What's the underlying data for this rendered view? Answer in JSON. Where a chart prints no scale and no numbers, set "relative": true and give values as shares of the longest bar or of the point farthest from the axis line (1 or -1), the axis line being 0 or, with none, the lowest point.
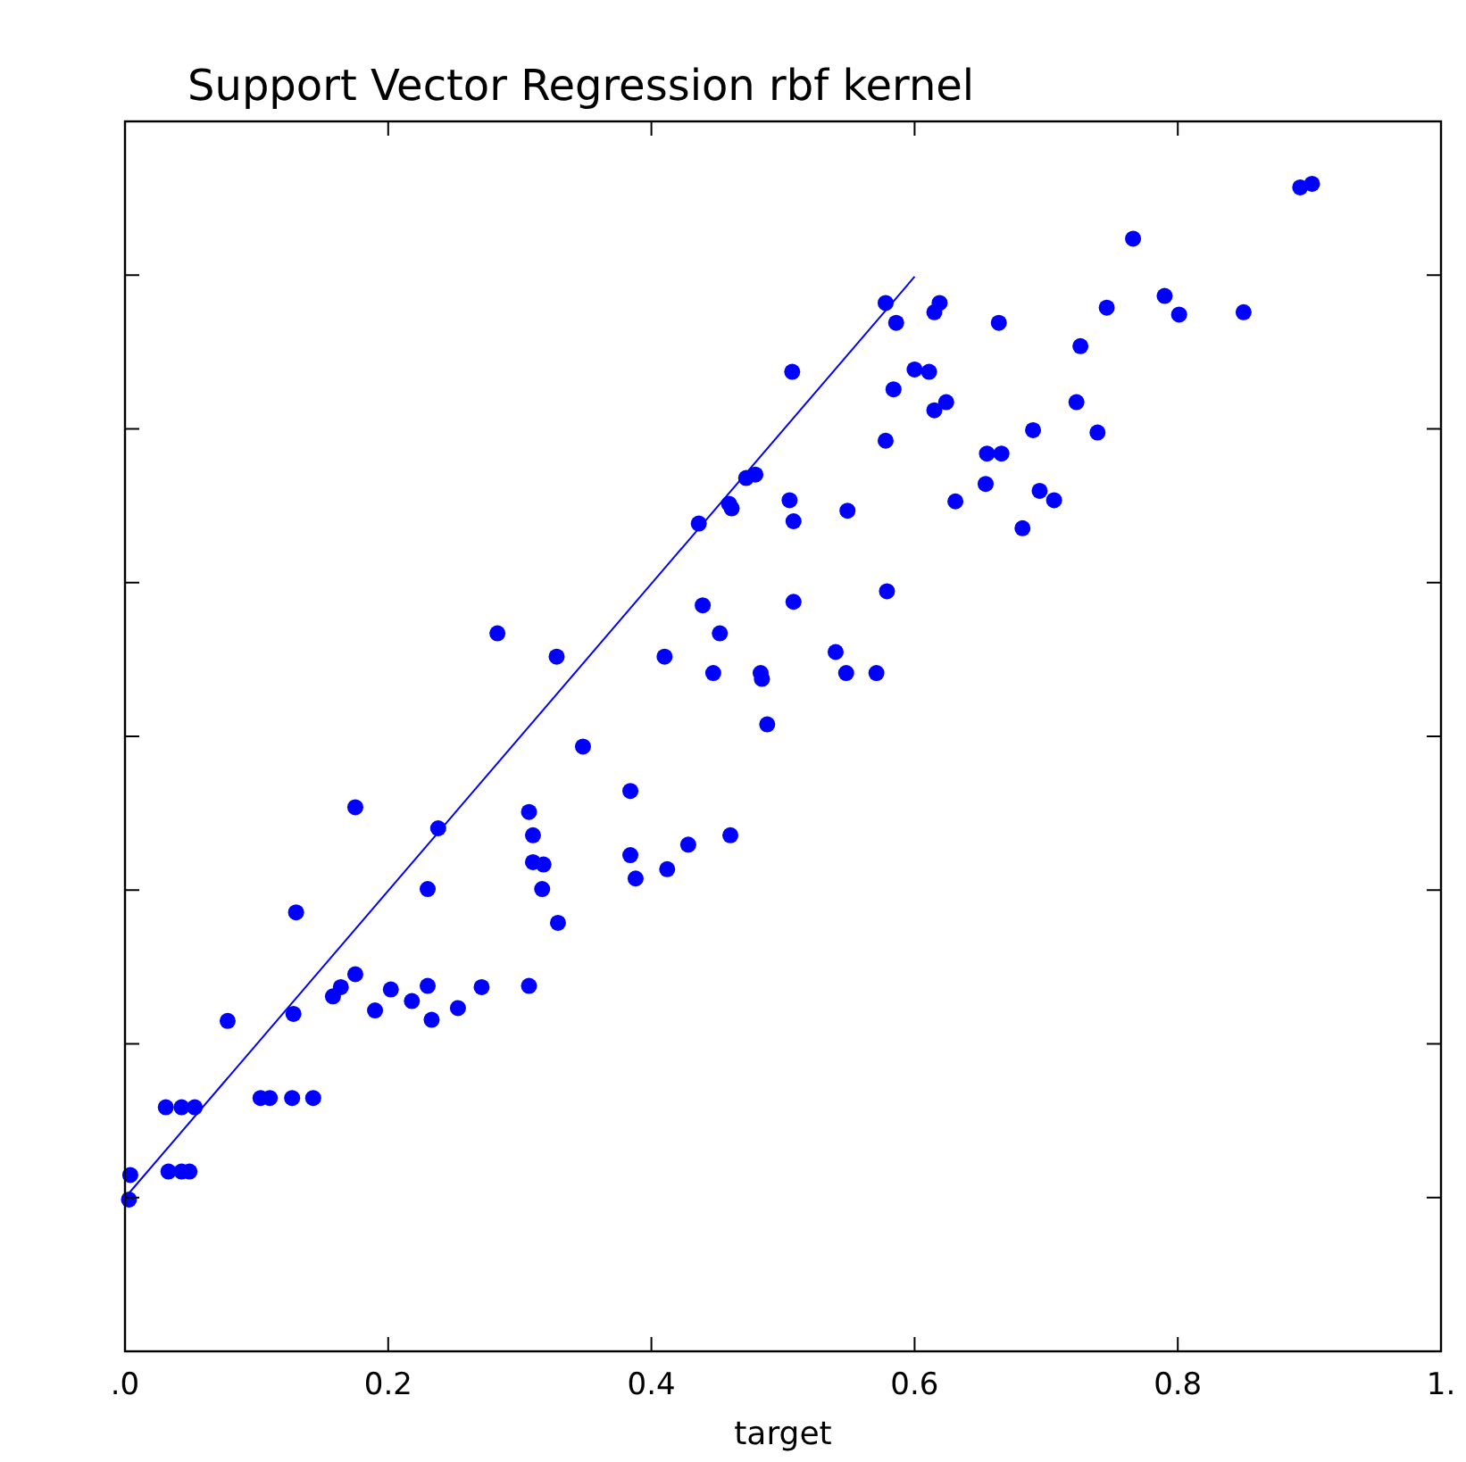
{
  "chart_data": {
    "type": "scatter",
    "title": "Support Vector Regression rbf kernel",
    "xlabel": "target",
    "relative": true,
    "xlim": [
      0,
      1
    ],
    "xticks": [
      {
        "value": 0,
        "label": ".0"
      },
      0.2,
      0.4,
      0.6,
      0.8,
      {
        "value": 1,
        "label": "1."
      }
    ],
    "grid": false,
    "series": [
      {
        "marker": "circle",
        "color": "#0000ff",
        "x": [
          0.003,
          0.004,
          0.033,
          0.043,
          0.049,
          0.031,
          0.043,
          0.053,
          0.103,
          0.11,
          0.127,
          0.143,
          0.078,
          0.128,
          0.13,
          0.158,
          0.164,
          0.175,
          0.19,
          0.202,
          0.218,
          0.23,
          0.233,
          0.253,
          0.271,
          0.307,
          0.175,
          0.23,
          0.238,
          0.283,
          0.307,
          0.31,
          0.31,
          0.318,
          0.317,
          0.329,
          0.328,
          0.348,
          0.384,
          0.384,
          0.388,
          0.412,
          0.428,
          0.46,
          0.41,
          0.447,
          0.452,
          0.439,
          0.483,
          0.484,
          0.488,
          0.508,
          0.54,
          0.548,
          0.571,
          0.579,
          0.436,
          0.459,
          0.461,
          0.472,
          0.479,
          0.505,
          0.508,
          0.549,
          0.507,
          0.578,
          0.586,
          0.615,
          0.619,
          0.6,
          0.611,
          0.584,
          0.615,
          0.624,
          0.578,
          0.631,
          0.654,
          0.655,
          0.666,
          0.664,
          0.69,
          0.695,
          0.706,
          0.682,
          0.723,
          0.726,
          0.739,
          0.746,
          0.766,
          0.79,
          0.801,
          0.85,
          0.893,
          0.902
        ],
        "values": [
          0.13,
          0.151,
          0.154,
          0.154,
          0.154,
          0.209,
          0.209,
          0.209,
          0.217,
          0.217,
          0.217,
          0.217,
          0.283,
          0.289,
          0.376,
          0.304,
          0.312,
          0.323,
          0.292,
          0.31,
          0.3,
          0.313,
          0.284,
          0.294,
          0.312,
          0.313,
          0.466,
          0.396,
          0.448,
          0.615,
          0.462,
          0.442,
          0.419,
          0.417,
          0.396,
          0.367,
          0.595,
          0.518,
          0.48,
          0.425,
          0.405,
          0.413,
          0.434,
          0.442,
          0.595,
          0.581,
          0.615,
          0.639,
          0.581,
          0.576,
          0.537,
          0.642,
          0.599,
          0.581,
          0.581,
          0.651,
          0.709,
          0.726,
          0.722,
          0.748,
          0.751,
          0.729,
          0.711,
          0.72,
          0.839,
          0.898,
          0.881,
          0.89,
          0.898,
          0.841,
          0.839,
          0.824,
          0.806,
          0.813,
          0.78,
          0.728,
          0.743,
          0.769,
          0.769,
          0.881,
          0.789,
          0.737,
          0.729,
          0.705,
          0.813,
          0.861,
          0.787,
          0.894,
          0.953,
          0.904,
          0.888,
          0.89,
          0.997,
          1.0
        ]
      },
      {
        "type": "line",
        "color": "#0000ff",
        "x": [
          0,
          0.6
        ],
        "values": [
          0.1315,
          0.9205
        ]
      }
    ]
  }
}
